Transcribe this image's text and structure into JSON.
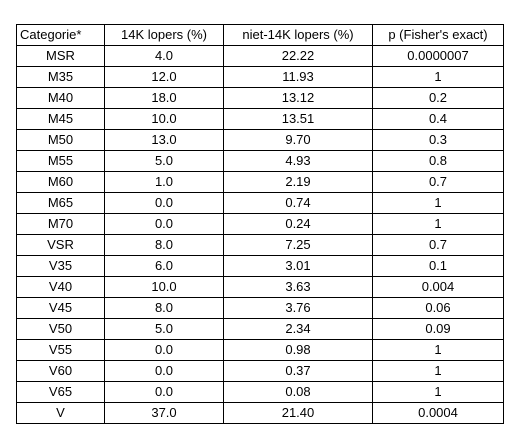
{
  "table": {
    "headers": [
      "Categorie*",
      "14K lopers (%)",
      "niet-14K lopers (%)",
      "p (Fisher's exact)"
    ],
    "rows": [
      [
        "MSR",
        "4.0",
        "22.22",
        "0.0000007"
      ],
      [
        "M35",
        "12.0",
        "11.93",
        "1"
      ],
      [
        "M40",
        "18.0",
        "13.12",
        "0.2"
      ],
      [
        "M45",
        "10.0",
        "13.51",
        "0.4"
      ],
      [
        "M50",
        "13.0",
        "9.70",
        "0.3"
      ],
      [
        "M55",
        "5.0",
        "4.93",
        "0.8"
      ],
      [
        "M60",
        "1.0",
        "2.19",
        "0.7"
      ],
      [
        "M65",
        "0.0",
        "0.74",
        "1"
      ],
      [
        "M70",
        "0.0",
        "0.24",
        "1"
      ],
      [
        "VSR",
        "8.0",
        "7.25",
        "0.7"
      ],
      [
        "V35",
        "6.0",
        "3.01",
        "0.1"
      ],
      [
        "V40",
        "10.0",
        "3.63",
        "0.004"
      ],
      [
        "V45",
        "8.0",
        "3.76",
        "0.06"
      ],
      [
        "V50",
        "5.0",
        "2.34",
        "0.09"
      ],
      [
        "V55",
        "0.0",
        "0.98",
        "1"
      ],
      [
        "V60",
        "0.0",
        "0.37",
        "1"
      ],
      [
        "V65",
        "0.0",
        "0.08",
        "1"
      ],
      [
        "V",
        "37.0",
        "21.40",
        "0.0004"
      ]
    ]
  }
}
